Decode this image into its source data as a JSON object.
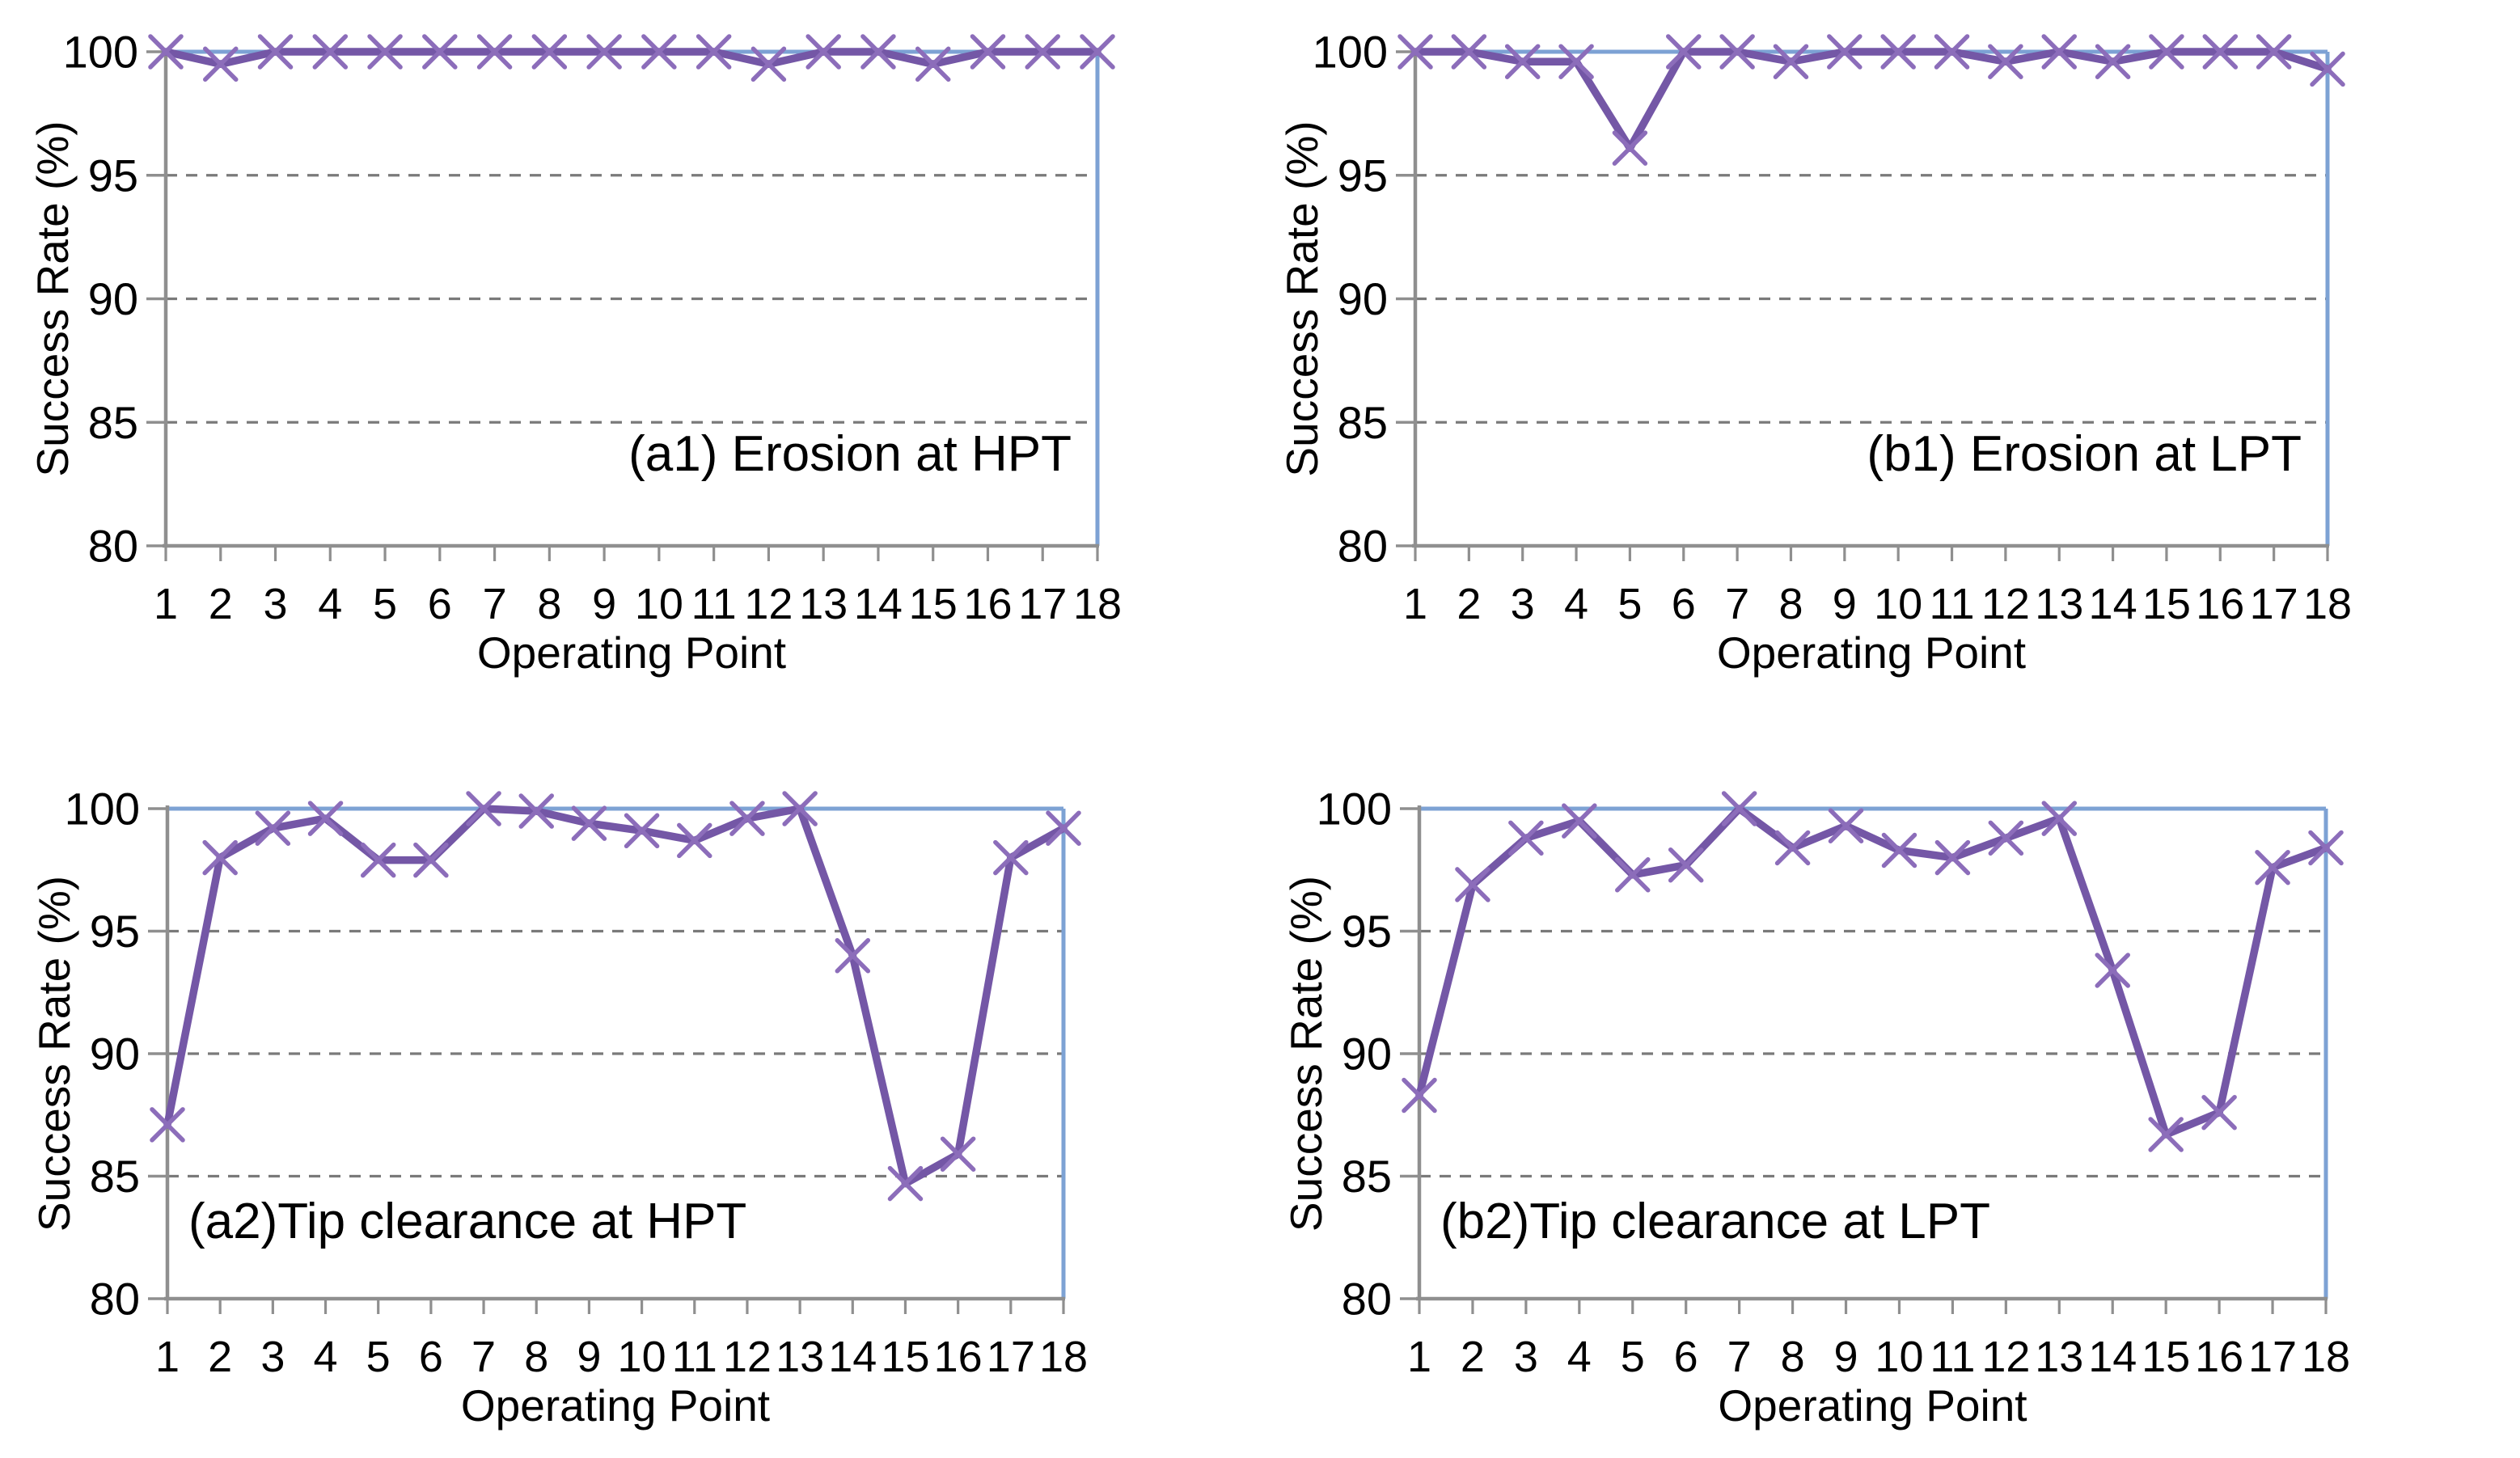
{
  "figure": {
    "ylabel": "Success Rate (%)",
    "xlabel": "Operating Point",
    "colors": {
      "series_line": "#7457A6",
      "series_marker": "#8C6DBA",
      "plot_border_blue": "#7DA2D4",
      "axis_gray": "#8F8F8F",
      "gridline_gray": "#7A7A7A",
      "text": "#000000",
      "background": "#ffffff"
    }
  },
  "chart_data": [
    {
      "id": "a1",
      "type": "line",
      "title": "(a1) Erosion at HPT",
      "xlabel": "Operating Point",
      "ylabel": "Success Rate (%)",
      "categories": [
        1,
        2,
        3,
        4,
        5,
        6,
        7,
        8,
        9,
        10,
        11,
        12,
        13,
        14,
        15,
        16,
        17,
        18
      ],
      "values": [
        100,
        99.5,
        100,
        100,
        100,
        100,
        100,
        100,
        100,
        100,
        100,
        99.5,
        100,
        100,
        99.5,
        100,
        100,
        100
      ],
      "ylim": [
        80,
        100
      ],
      "yticks": [
        80,
        85,
        90,
        95,
        100
      ],
      "gridlines": [
        85,
        90,
        95
      ],
      "grid": "dashed horizontal",
      "legend": "none",
      "marker": "x"
    },
    {
      "id": "b1",
      "type": "line",
      "title": "(b1) Erosion at LPT",
      "xlabel": "Operating Point",
      "ylabel": "Success Rate (%)",
      "categories": [
        1,
        2,
        3,
        4,
        5,
        6,
        7,
        8,
        9,
        10,
        11,
        12,
        13,
        14,
        15,
        16,
        17,
        18
      ],
      "values": [
        100,
        100,
        99.6,
        99.6,
        96.1,
        100,
        100,
        99.6,
        100,
        100,
        100,
        99.6,
        100,
        99.6,
        100,
        100,
        100,
        99.3
      ],
      "ylim": [
        80,
        100
      ],
      "yticks": [
        80,
        85,
        90,
        95,
        100
      ],
      "gridlines": [
        85,
        90,
        95
      ],
      "grid": "dashed horizontal",
      "legend": "none",
      "marker": "x"
    },
    {
      "id": "a2",
      "type": "line",
      "title": "(a2)Tip clearance at HPT",
      "xlabel": "Operating Point",
      "ylabel": "Success Rate (%)",
      "categories": [
        1,
        2,
        3,
        4,
        5,
        6,
        7,
        8,
        9,
        10,
        11,
        12,
        13,
        14,
        15,
        16,
        17,
        18
      ],
      "values": [
        87.1,
        98.0,
        99.2,
        99.6,
        97.9,
        97.9,
        100,
        99.9,
        99.4,
        99.1,
        98.7,
        99.6,
        100,
        94.0,
        84.7,
        85.9,
        98.0,
        99.2
      ],
      "ylim": [
        80,
        100
      ],
      "yticks": [
        80,
        85,
        90,
        95,
        100
      ],
      "gridlines": [
        85,
        90,
        95
      ],
      "grid": "dashed horizontal",
      "legend": "none",
      "marker": "x"
    },
    {
      "id": "b2",
      "type": "line",
      "title": "(b2)Tip clearance at LPT",
      "xlabel": "Operating Point",
      "ylabel": "Success Rate (%)",
      "categories": [
        1,
        2,
        3,
        4,
        5,
        6,
        7,
        8,
        9,
        10,
        11,
        12,
        13,
        14,
        15,
        16,
        17,
        18
      ],
      "values": [
        88.3,
        96.9,
        98.8,
        99.5,
        97.3,
        97.7,
        100,
        98.4,
        99.3,
        98.3,
        98.0,
        98.8,
        99.6,
        93.4,
        86.7,
        87.6,
        97.6,
        98.4
      ],
      "ylim": [
        80,
        100
      ],
      "yticks": [
        80,
        85,
        90,
        95,
        100
      ],
      "gridlines": [
        85,
        90,
        95
      ],
      "grid": "dashed horizontal",
      "legend": "none",
      "marker": "x"
    }
  ]
}
